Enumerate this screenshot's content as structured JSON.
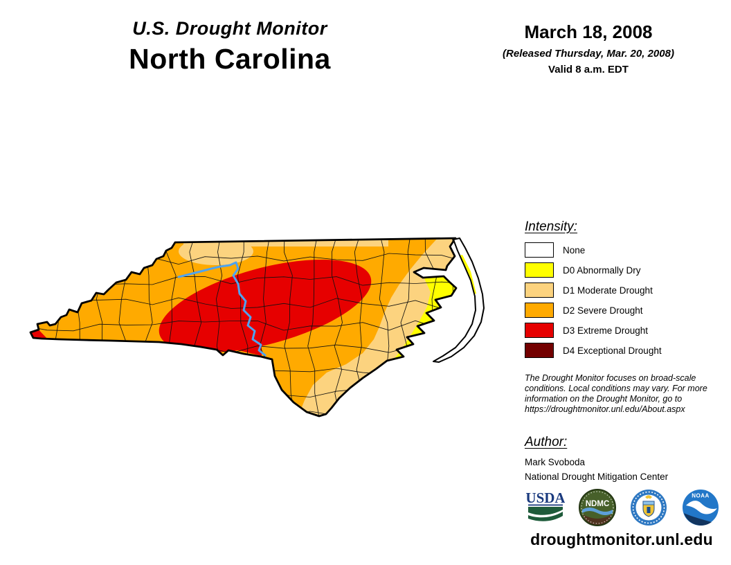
{
  "header": {
    "title_line1": "U.S. Drought Monitor",
    "title_line2": "North Carolina",
    "date": "March 18, 2008",
    "released": "(Released Thursday, Mar. 20, 2008)",
    "valid": "Valid 8 a.m. EDT"
  },
  "legend": {
    "heading": "Intensity:",
    "items": [
      {
        "label": "None",
        "color": "#FFFFFF"
      },
      {
        "label": "D0 Abnormally Dry",
        "color": "#FFFF00"
      },
      {
        "label": "D1 Moderate Drought",
        "color": "#FCD37F"
      },
      {
        "label": "D2 Severe Drought",
        "color": "#FFAA00"
      },
      {
        "label": "D3 Extreme Drought",
        "color": "#E60000"
      },
      {
        "label": "D4 Exceptional Drought",
        "color": "#730000"
      }
    ]
  },
  "disclaimer": {
    "lines": [
      "The Drought Monitor focuses on broad-scale",
      "conditions. Local conditions may vary. For more",
      "information on the Drought Monitor, go to",
      "https://droughtmonitor.unl.edu/About.aspx"
    ]
  },
  "author": {
    "heading": "Author:",
    "name": "Mark Svoboda",
    "org": "National Drought Mitigation Center"
  },
  "logos": {
    "items": [
      {
        "name": "usda-logo",
        "text": "USDA"
      },
      {
        "name": "ndmc-logo",
        "text": "NDMC"
      },
      {
        "name": "commerce-seal-logo",
        "text": ""
      },
      {
        "name": "noaa-logo",
        "text": "NOAA"
      }
    ]
  },
  "footer": {
    "url": "droughtmonitor.unl.edu"
  },
  "map": {
    "region": "North Carolina",
    "river_color": "#4FA3F0",
    "water_color": "#FFFFFF",
    "border_color": "#000000"
  }
}
